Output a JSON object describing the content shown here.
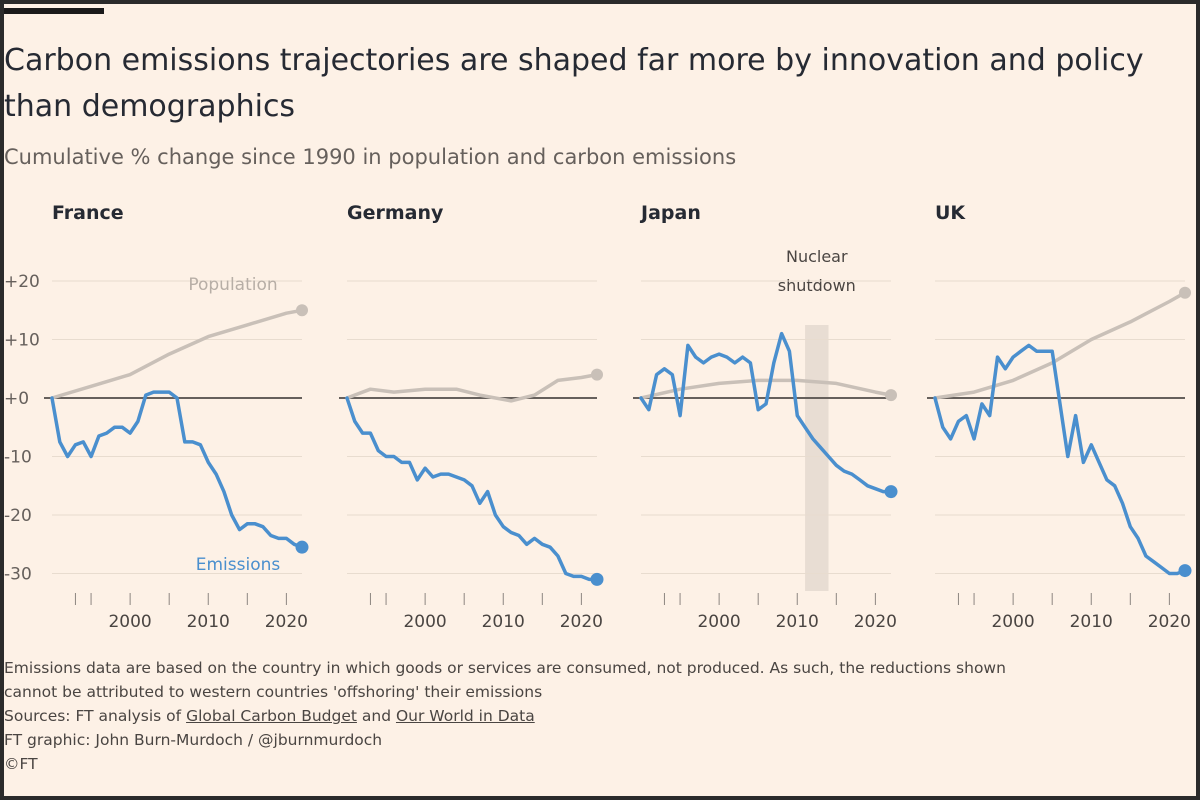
{
  "title_line1": "Carbon emissions trajectories are shaped far more by innovation and policy",
  "title_line2": "than demographics",
  "subtitle": "Cumulative % change since 1990 in population and carbon emissions",
  "colors": {
    "background": "#fdf1e6",
    "population": "#c9c0b8",
    "emissions": "#4a8fce",
    "zero_line": "#66605c",
    "grid": "#e8dccf",
    "shade": "#e4d9cf"
  },
  "y_ticks": [
    20,
    10,
    0,
    -10,
    -20,
    -30
  ],
  "y_tick_labels": [
    "+20",
    "+10",
    "+0",
    "-10",
    "-20",
    "-30"
  ],
  "x_tick_labels": [
    "2000",
    "2010",
    "2020"
  ],
  "labels": {
    "population": "Population",
    "emissions": "Emissions",
    "annotation_line1": "Nuclear",
    "annotation_line2": "shutdown"
  },
  "chart_data": {
    "type": "line",
    "x_range": [
      1990,
      2022
    ],
    "ylim": [
      -33,
      22
    ],
    "ylabel": "Cumulative % change since 1990",
    "panels": [
      {
        "name": "France",
        "population": {
          "x": [
            1990,
            1995,
            2000,
            2005,
            2010,
            2015,
            2020,
            2022
          ],
          "values": [
            0,
            2,
            4,
            7.5,
            10.5,
            12.5,
            14.5,
            15
          ]
        },
        "emissions": {
          "x": [
            1990,
            1991,
            1992,
            1993,
            1994,
            1995,
            1996,
            1997,
            1998,
            1999,
            2000,
            2001,
            2002,
            2003,
            2004,
            2005,
            2006,
            2007,
            2008,
            2009,
            2010,
            2011,
            2012,
            2013,
            2014,
            2015,
            2016,
            2017,
            2018,
            2019,
            2020,
            2021,
            2022
          ],
          "values": [
            0,
            -7.5,
            -10,
            -8,
            -7.5,
            -10,
            -6.5,
            -6,
            -5,
            -5,
            -6,
            -4,
            0.5,
            1,
            1,
            1,
            0,
            -7.5,
            -7.5,
            -8,
            -11,
            -13,
            -16,
            -20,
            -22.5,
            -21.5,
            -21.5,
            -22,
            -23.5,
            -24,
            -24,
            -25,
            -25.5
          ]
        }
      },
      {
        "name": "Germany",
        "population": {
          "x": [
            1990,
            1993,
            1996,
            2000,
            2004,
            2007,
            2011,
            2014,
            2017,
            2020,
            2022
          ],
          "values": [
            0,
            1.5,
            1,
            1.5,
            1.5,
            0.5,
            -0.5,
            0.5,
            3,
            3.5,
            4
          ]
        },
        "emissions": {
          "x": [
            1990,
            1991,
            1992,
            1993,
            1994,
            1995,
            1996,
            1997,
            1998,
            1999,
            2000,
            2001,
            2002,
            2003,
            2004,
            2005,
            2006,
            2007,
            2008,
            2009,
            2010,
            2011,
            2012,
            2013,
            2014,
            2015,
            2016,
            2017,
            2018,
            2019,
            2020,
            2021,
            2022
          ],
          "values": [
            0,
            -4,
            -6,
            -6,
            -9,
            -10,
            -10,
            -11,
            -11,
            -14,
            -12,
            -13.5,
            -13,
            -13,
            -13.5,
            -14,
            -15,
            -18,
            -16,
            -20,
            -22,
            -23,
            -23.5,
            -25,
            -24,
            -25,
            -25.5,
            -27,
            -30,
            -30.5,
            -30.5,
            -31,
            -31
          ]
        }
      },
      {
        "name": "Japan",
        "population": {
          "x": [
            1990,
            1995,
            2000,
            2005,
            2010,
            2015,
            2020,
            2022
          ],
          "values": [
            0,
            1.5,
            2.5,
            3,
            3,
            2.5,
            1,
            0.5
          ]
        },
        "emissions": {
          "x": [
            1990,
            1991,
            1992,
            1993,
            1994,
            1995,
            1996,
            1997,
            1998,
            1999,
            2000,
            2001,
            2002,
            2003,
            2004,
            2005,
            2006,
            2007,
            2008,
            2009,
            2010,
            2011,
            2012,
            2013,
            2014,
            2015,
            2016,
            2017,
            2018,
            2019,
            2020,
            2021,
            2022
          ],
          "values": [
            0,
            -2,
            4,
            5,
            4,
            -3,
            9,
            7,
            6,
            7,
            7.5,
            7,
            6,
            7,
            6,
            -2,
            -1,
            6,
            11,
            8,
            -3,
            -5,
            -7,
            -8.5,
            -10,
            -11.5,
            -12.5,
            -13,
            -14,
            -15,
            -15.5,
            -16,
            -16
          ]
        },
        "annotation": {
          "start": 2011,
          "end": 2014
        }
      },
      {
        "name": "UK",
        "population": {
          "x": [
            1990,
            1995,
            2000,
            2005,
            2010,
            2015,
            2020,
            2022
          ],
          "values": [
            0,
            1,
            3,
            6,
            10,
            13,
            16.5,
            18
          ]
        },
        "emissions": {
          "x": [
            1990,
            1991,
            1992,
            1993,
            1994,
            1995,
            1996,
            1997,
            1998,
            1999,
            2000,
            2001,
            2002,
            2003,
            2004,
            2005,
            2006,
            2007,
            2008,
            2009,
            2010,
            2011,
            2012,
            2013,
            2014,
            2015,
            2016,
            2017,
            2018,
            2019,
            2020,
            2021,
            2022
          ],
          "values": [
            0,
            -5,
            -7,
            -4,
            -3,
            -7,
            -1,
            -3,
            7,
            5,
            7,
            8,
            9,
            8,
            8,
            8,
            -1,
            -10,
            -3,
            -11,
            -8,
            -11,
            -14,
            -15,
            -18,
            -22,
            -24,
            -27,
            -28,
            -29,
            -30,
            -30,
            -29.5
          ]
        }
      }
    ]
  },
  "footer": {
    "note_line1": "Emissions data are based on the country in which goods or services are consumed, not produced. As such, the reductions shown",
    "note_line2": "cannot be attributed to western countries 'offshoring' their emissions",
    "sources_prefix": "Sources: FT analysis of ",
    "source1": "Global Carbon Budget",
    "sources_and": " and ",
    "source2": "Our World in Data",
    "credit": "FT graphic: John Burn-Murdoch / @jburnmurdoch",
    "copyright": "©FT"
  }
}
